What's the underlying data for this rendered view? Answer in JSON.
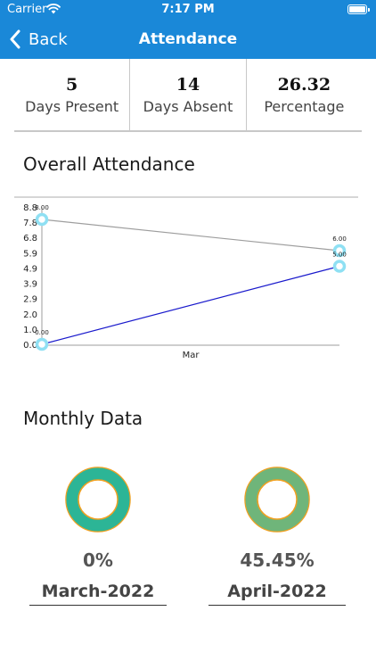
{
  "status_bar": {
    "carrier": "Carrier",
    "time": "7:17 PM"
  },
  "nav": {
    "back_label": "Back",
    "title": "Attendance"
  },
  "stats": [
    {
      "value": "5",
      "label": "Days Present"
    },
    {
      "value": "14",
      "label": "Days Absent"
    },
    {
      "value": "26.32",
      "label": "Percentage"
    }
  ],
  "sections": {
    "overall": "Overall Attendance",
    "monthly": "Monthly Data"
  },
  "chart_data": {
    "type": "line",
    "categories": [
      "",
      "Mar"
    ],
    "y_ticks": [
      "0.0",
      "1.0",
      "2.0",
      "2.9",
      "3.9",
      "4.9",
      "5.9",
      "6.8",
      "7.8",
      "8.8"
    ],
    "ylim": [
      0,
      8.8
    ],
    "series": [
      {
        "values": [
          8,
          6
        ],
        "point_labels": [
          "8.00",
          "6.00"
        ],
        "color": "#9e9e9e"
      },
      {
        "values": [
          0,
          5
        ],
        "point_labels": [
          "0.00",
          "5.00"
        ],
        "color": "#1a1acc"
      }
    ],
    "marker_color": "#8fe0f3",
    "grid": false
  },
  "monthly": [
    {
      "percent": "0%",
      "month": "March-2022",
      "fill": "#2cb596",
      "ring": "#f0a020"
    },
    {
      "percent": "45.45%",
      "month": "April-2022",
      "fill": "#6fb57a",
      "ring": "#f0a020"
    }
  ]
}
